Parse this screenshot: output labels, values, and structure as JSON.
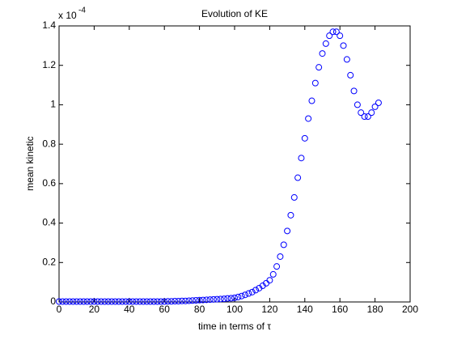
{
  "chart_data": {
    "type": "scatter",
    "title": "Evolution of KE",
    "x_label": "time in terms of τ",
    "y_label": "mean kinetic",
    "y_multiplier": "x 10",
    "y_exponent": "-4",
    "marker": "circle",
    "color": "#0000ff",
    "grid": false,
    "xlim": [
      0,
      200
    ],
    "xticks": [
      0,
      20,
      40,
      60,
      80,
      100,
      120,
      140,
      160,
      180,
      200
    ],
    "ylim": [
      0,
      1.4
    ],
    "yticks": [
      0,
      0.2,
      0.4,
      0.6,
      0.8,
      1,
      1.2,
      1.4
    ],
    "x": [
      0,
      2,
      4,
      6,
      8,
      10,
      12,
      14,
      16,
      18,
      20,
      22,
      24,
      26,
      28,
      30,
      32,
      34,
      36,
      38,
      40,
      42,
      44,
      46,
      48,
      50,
      52,
      54,
      56,
      58,
      60,
      62,
      64,
      66,
      68,
      70,
      72,
      74,
      76,
      78,
      80,
      82,
      84,
      86,
      88,
      90,
      92,
      94,
      96,
      98,
      100,
      102,
      104,
      106,
      108,
      110,
      112,
      114,
      116,
      118,
      120,
      122,
      124,
      126,
      128,
      130,
      132,
      134,
      136,
      138,
      140,
      142,
      144,
      146,
      148,
      150,
      152,
      154,
      156,
      158,
      160,
      162,
      164,
      166,
      168,
      170,
      172,
      174,
      176,
      178,
      180,
      182
    ],
    "values": [
      0.002,
      0.002,
      0.002,
      0.002,
      0.002,
      0.002,
      0.002,
      0.002,
      0.002,
      0.002,
      0.002,
      0.002,
      0.002,
      0.002,
      0.002,
      0.002,
      0.002,
      0.002,
      0.002,
      0.002,
      0.002,
      0.002,
      0.002,
      0.002,
      0.002,
      0.002,
      0.002,
      0.002,
      0.002,
      0.002,
      0.002,
      0.003,
      0.003,
      0.004,
      0.004,
      0.005,
      0.005,
      0.006,
      0.007,
      0.008,
      0.009,
      0.01,
      0.011,
      0.012,
      0.013,
      0.014,
      0.015,
      0.016,
      0.018,
      0.019,
      0.021,
      0.025,
      0.03,
      0.036,
      0.043,
      0.05,
      0.06,
      0.07,
      0.082,
      0.095,
      0.11,
      0.14,
      0.18,
      0.23,
      0.29,
      0.36,
      0.44,
      0.53,
      0.63,
      0.73,
      0.83,
      0.93,
      1.02,
      1.11,
      1.19,
      1.26,
      1.31,
      1.35,
      1.37,
      1.37,
      1.35,
      1.3,
      1.23,
      1.15,
      1.07,
      1.0,
      0.96,
      0.94,
      0.94,
      0.96,
      0.99,
      1.01
    ]
  }
}
